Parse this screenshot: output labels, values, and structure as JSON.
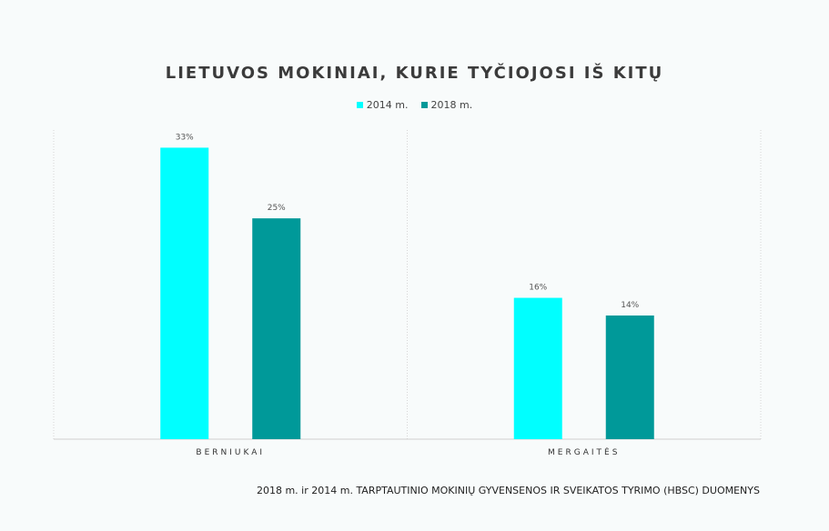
{
  "chart_data": {
    "type": "bar",
    "title": "LIETUVOS MOKINIAI, KURIE TYČIOJOSI IŠ KITŲ",
    "categories": [
      "BERNIUKAI",
      "MERGAITĖS"
    ],
    "series": [
      {
        "name": "2014 m.",
        "values": [
          33,
          16
        ],
        "labels": [
          "33%",
          "16%"
        ],
        "color": "#00ffff"
      },
      {
        "name": "2018 m.",
        "values": [
          25,
          14
        ],
        "labels": [
          "25%",
          "14%"
        ],
        "color": "#009999"
      }
    ],
    "ylim": [
      0,
      35
    ],
    "grid": false,
    "legend_position": "top-center"
  },
  "footnote": "2018 m. ir 2014 m. TARPTAUTINIO MOKINIŲ GYVENSENOS IR SVEIKATOS TYRIMO (HBSC) DUOMENYS"
}
